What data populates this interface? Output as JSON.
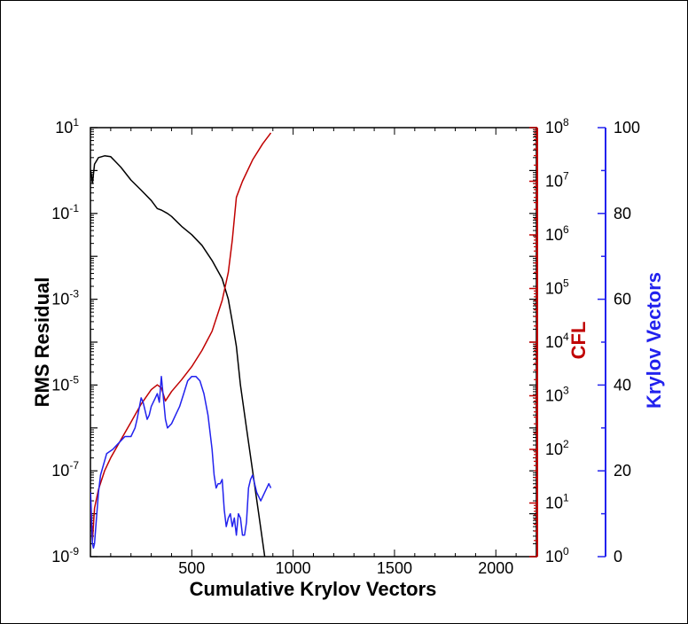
{
  "chart_data": {
    "type": "line",
    "xlabel": "Cumulative Krylov Vectors",
    "xlim": [
      0,
      2200
    ],
    "xticks": [
      500,
      1000,
      1500,
      2000
    ],
    "axes": {
      "left": {
        "label": "RMS Residual",
        "scale": "log",
        "min_exp": -9,
        "max_exp": 1,
        "tick_exps": [
          1,
          -1,
          -3,
          -5,
          -7,
          -9
        ],
        "color": "#000000"
      },
      "right1": {
        "label": "CFL",
        "scale": "log",
        "min_exp": 0,
        "max_exp": 8,
        "tick_exps": [
          8,
          7,
          6,
          5,
          4,
          3,
          2,
          1,
          0
        ],
        "color": "#c00000"
      },
      "right2": {
        "label": "Krylov Vectors",
        "scale": "linear",
        "ylim": [
          0,
          100
        ],
        "ticks": [
          100,
          80,
          60,
          40,
          20,
          0
        ],
        "color": "#2222ee"
      }
    },
    "tick_base": "10",
    "series": [
      {
        "axis": "left",
        "color": "#000000",
        "x": [
          1,
          5,
          10,
          20,
          40,
          70,
          100,
          150,
          200,
          250,
          300,
          330,
          350,
          380,
          400,
          450,
          500,
          550,
          600,
          650,
          680,
          700,
          720,
          740,
          770,
          800,
          830,
          860,
          890
        ],
        "y": [
          1.0,
          0.8,
          0.5,
          1.4,
          2.0,
          2.2,
          2.1,
          1.2,
          0.6,
          0.35,
          0.2,
          0.13,
          0.12,
          0.1,
          0.085,
          0.05,
          0.032,
          0.018,
          0.008,
          0.003,
          0.001,
          0.0003,
          8e-05,
          1e-05,
          1e-06,
          1e-07,
          1e-08,
          1e-09,
          3e-10
        ]
      },
      {
        "axis": "right1",
        "color": "#c00000",
        "x": [
          1,
          10,
          20,
          40,
          70,
          100,
          150,
          200,
          250,
          300,
          330,
          350,
          370,
          400,
          450,
          500,
          550,
          600,
          650,
          680,
          700,
          720,
          750,
          800,
          850,
          890
        ],
        "y": [
          8,
          2,
          8,
          18,
          40,
          70,
          150,
          320,
          700,
          1300,
          1600,
          1400,
          800,
          1200,
          2000,
          3500,
          7000,
          16000,
          60000,
          200000,
          800000,
          5000000,
          10000000,
          25000000,
          50000000,
          80000000
        ]
      },
      {
        "axis": "right2",
        "color": "#2222ee",
        "x": [
          1,
          10,
          15,
          20,
          25,
          40,
          50,
          80,
          110,
          130,
          150,
          170,
          180,
          200,
          220,
          230,
          250,
          260,
          270,
          280,
          290,
          300,
          320,
          330,
          340,
          350,
          360,
          370,
          380,
          400,
          420,
          440,
          460,
          480,
          500,
          520,
          540,
          560,
          580,
          600,
          610,
          620,
          630,
          640,
          650,
          660,
          670,
          680,
          690,
          700,
          710,
          720,
          730,
          740,
          750,
          760,
          770,
          780,
          790,
          800,
          820,
          840,
          860,
          880,
          890
        ],
        "y": [
          15,
          3,
          2,
          3,
          6,
          15,
          19,
          24,
          25,
          26,
          27,
          28,
          28,
          28,
          30,
          32,
          37,
          36,
          34,
          32,
          33,
          35,
          37,
          38,
          36,
          42,
          37,
          32,
          30,
          31,
          33,
          35,
          38,
          41,
          42,
          42,
          41,
          38,
          33,
          25,
          19,
          16,
          17,
          17,
          18,
          11,
          7,
          9,
          10,
          7,
          9,
          5,
          10,
          9,
          5,
          5,
          8,
          16,
          18,
          19,
          15,
          13,
          15,
          17,
          16
        ]
      }
    ]
  }
}
